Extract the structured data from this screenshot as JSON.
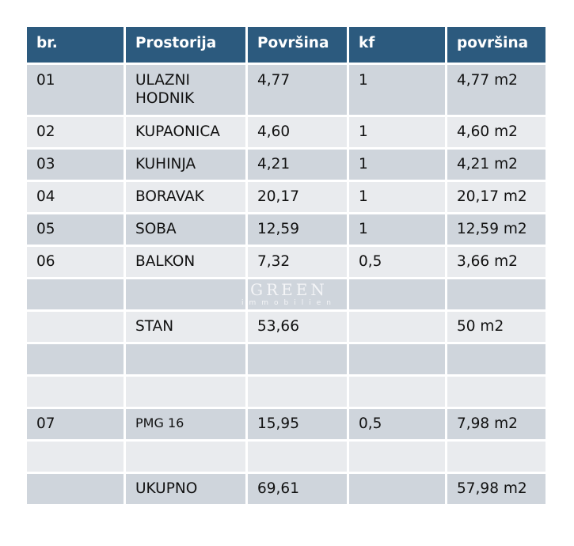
{
  "headers": [
    "br.",
    "Prostorija",
    "Površina",
    "kf",
    "površina"
  ],
  "rows": [
    [
      "01",
      "ULAZNI HODNIK",
      "4,77",
      "1",
      "4,77 m2"
    ],
    [
      "02",
      "KUPAONICA",
      "4,60",
      "1",
      "4,60 m2"
    ],
    [
      "03",
      "KUHINJA",
      "4,21",
      "1",
      "4,21 m2"
    ],
    [
      "04",
      "BORAVAK",
      "20,17",
      "1",
      "20,17 m2"
    ],
    [
      "05",
      "SOBA",
      "12,59",
      "1",
      "12,59 m2"
    ],
    [
      "06",
      "BALKON",
      "7,32",
      "0,5",
      "3,66 m2"
    ],
    [
      "",
      "",
      "",
      "",
      ""
    ],
    [
      "",
      "STAN",
      "53,66",
      "",
      "50 m2"
    ],
    [
      "",
      "",
      "",
      "",
      ""
    ],
    [
      "",
      "",
      "",
      "",
      ""
    ],
    [
      "07",
      "PMG 16",
      "15,95",
      "0,5",
      "7,98 m2"
    ],
    [
      "",
      "",
      "",
      "",
      ""
    ],
    [
      "",
      "UKUPNO",
      "69,61",
      "",
      "57,98 m2"
    ]
  ],
  "watermark": {
    "title": "GREEN",
    "subtitle": "immobilien"
  },
  "colors": {
    "header": "#2c5a7e",
    "row_dark": "#cfd5dc",
    "row_light": "#e9ebee"
  }
}
